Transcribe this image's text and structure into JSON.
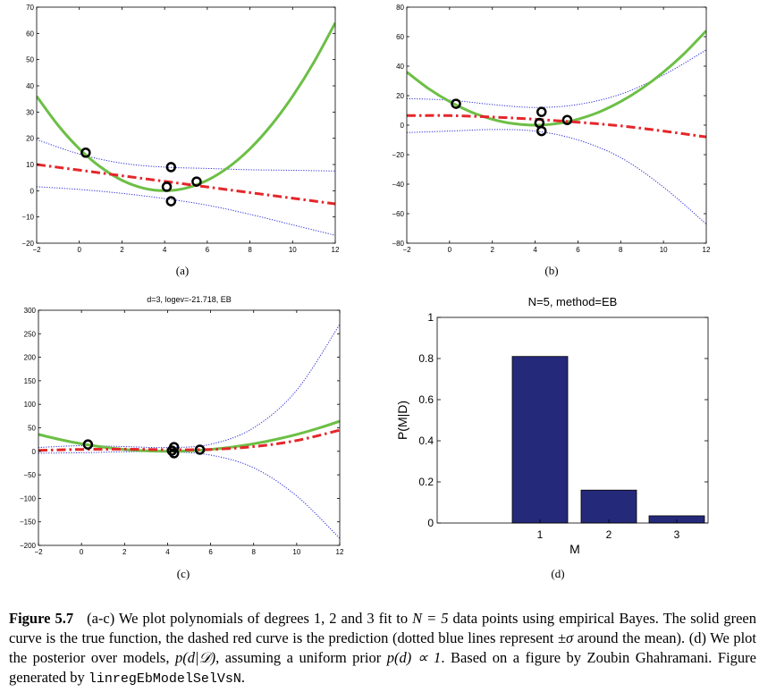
{
  "chart_data": [
    {
      "id": "a",
      "type": "line",
      "title": "",
      "sublabel": "(a)",
      "xlim": [
        -2,
        12
      ],
      "ylim": [
        -20,
        70
      ],
      "xticks": [
        -2,
        0,
        2,
        4,
        6,
        8,
        10,
        12
      ],
      "yticks": [
        -20,
        -10,
        0,
        10,
        20,
        30,
        40,
        50,
        60,
        70
      ],
      "points": [
        [
          0.3,
          14.5
        ],
        [
          4.1,
          1.5
        ],
        [
          4.3,
          9.0
        ],
        [
          4.3,
          -4.0
        ],
        [
          5.5,
          3.5
        ]
      ],
      "true_fn": {
        "x": [
          -2,
          -1,
          0,
          1,
          2,
          3,
          4,
          5,
          6,
          7,
          8,
          9,
          10,
          11,
          12
        ],
        "y": [
          36,
          25,
          16,
          9,
          4,
          1,
          0,
          1,
          4,
          9,
          16,
          25,
          36,
          49,
          64
        ]
      },
      "prediction": {
        "x": [
          -2,
          12
        ],
        "y": [
          10,
          -5
        ]
      },
      "upper": {
        "x": [
          -2,
          0,
          2,
          4,
          6,
          8,
          10,
          12
        ],
        "y": [
          19.5,
          14,
          10.5,
          9,
          8.5,
          8,
          7.8,
          7.5
        ]
      },
      "lower": {
        "x": [
          -2,
          0,
          2,
          4,
          6,
          8,
          10,
          12
        ],
        "y": [
          1.5,
          0.5,
          -1,
          -3,
          -5.5,
          -9,
          -13,
          -17
        ]
      }
    },
    {
      "id": "b",
      "type": "line",
      "title": "",
      "sublabel": "(b)",
      "xlim": [
        -2,
        12
      ],
      "ylim": [
        -80,
        80
      ],
      "xticks": [
        -2,
        0,
        2,
        4,
        6,
        8,
        10,
        12
      ],
      "yticks": [
        -80,
        -60,
        -40,
        -20,
        0,
        20,
        40,
        60,
        80
      ],
      "points": [
        [
          0.3,
          14.5
        ],
        [
          4.2,
          1.5
        ],
        [
          4.3,
          9.0
        ],
        [
          4.3,
          -4.0
        ],
        [
          5.5,
          3.5
        ]
      ],
      "true_fn": {
        "x": [
          -2,
          -1,
          0,
          1,
          2,
          3,
          4,
          5,
          6,
          7,
          8,
          9,
          10,
          11,
          12
        ],
        "y": [
          36,
          25,
          16,
          9,
          4,
          1,
          0,
          1,
          4,
          9,
          16,
          25,
          36,
          49,
          64
        ]
      },
      "prediction": {
        "x": [
          -2,
          0,
          2,
          4,
          6,
          8,
          10,
          12
        ],
        "y": [
          6.5,
          6.5,
          5.5,
          4,
          2,
          -0.5,
          -4,
          -8
        ]
      },
      "upper": {
        "x": [
          -2,
          0,
          2,
          4,
          6,
          8,
          10,
          12
        ],
        "y": [
          18,
          17,
          14,
          12,
          14,
          21,
          34,
          51
        ]
      },
      "lower": {
        "x": [
          -2,
          0,
          2,
          4,
          6,
          8,
          10,
          12
        ],
        "y": [
          -5,
          -4,
          -3,
          -4,
          -10,
          -22,
          -42,
          -67
        ]
      }
    },
    {
      "id": "c",
      "type": "line",
      "title": "d=3, logev=-21.718, EB",
      "sublabel": "(c)",
      "xlim": [
        -2,
        12
      ],
      "ylim": [
        -200,
        300
      ],
      "xticks": [
        -2,
        0,
        2,
        4,
        6,
        8,
        10,
        12
      ],
      "yticks": [
        -200,
        -150,
        -100,
        -50,
        0,
        50,
        100,
        150,
        200,
        250,
        300
      ],
      "points": [
        [
          0.3,
          14.5
        ],
        [
          4.2,
          1.5
        ],
        [
          4.3,
          9.0
        ],
        [
          4.3,
          -4.0
        ],
        [
          5.5,
          3.5
        ]
      ],
      "true_fn": {
        "x": [
          -2,
          -1,
          0,
          1,
          2,
          3,
          4,
          5,
          6,
          7,
          8,
          9,
          10,
          11,
          12
        ],
        "y": [
          36,
          25,
          16,
          9,
          4,
          1,
          0,
          1,
          4,
          9,
          16,
          25,
          36,
          49,
          64
        ]
      },
      "prediction": {
        "x": [
          -2,
          0,
          2,
          4,
          6,
          8,
          10,
          12
        ],
        "y": [
          2,
          4,
          4.5,
          3.5,
          4,
          10,
          23,
          45
        ]
      },
      "upper": {
        "x": [
          -2,
          0,
          2,
          4,
          6,
          8,
          10,
          12
        ],
        "y": [
          8,
          12,
          10,
          8,
          15,
          50,
          130,
          270
        ]
      },
      "lower": {
        "x": [
          -2,
          0,
          2,
          4,
          6,
          8,
          10,
          12
        ],
        "y": [
          -4,
          -3,
          -1,
          -1,
          -8,
          -35,
          -95,
          -185
        ]
      }
    },
    {
      "id": "d",
      "type": "bar",
      "title": "N=5, method=EB",
      "sublabel": "(d)",
      "xlabel": "M",
      "ylabel": "P(M|D)",
      "categories": [
        "1",
        "2",
        "3"
      ],
      "values": [
        0.81,
        0.16,
        0.035
      ],
      "ylim": [
        0,
        1
      ],
      "yticks": [
        "0",
        "0.2",
        "0.4",
        "0.6",
        "0.8",
        "1"
      ]
    }
  ],
  "colors": {
    "true_fn": "#6cbf45",
    "prediction": "#e5262a",
    "interval": "#2b2bd8",
    "bars": "#25297a",
    "points": "#000000"
  },
  "caption": {
    "label": "Figure 5.7",
    "part1": "(a-c) We plot polynomials of degrees 1, 2 and 3 fit to ",
    "math1": "N = 5",
    "part2": " data points using empirical Bayes. The solid green curve is the true function, the dashed red curve is the prediction (dotted blue lines represent ",
    "math2": "±σ",
    "part3": " around the mean). (d) We plot the posterior over models, ",
    "math3": "p(d|𝒟)",
    "part4": ", assuming a uniform prior ",
    "math4": "p(d) ∝ 1",
    "part5": ". Based on a figure by Zoubin Ghahramani. Figure generated by ",
    "code": "linregEbModelSelVsN",
    "part6": "."
  }
}
